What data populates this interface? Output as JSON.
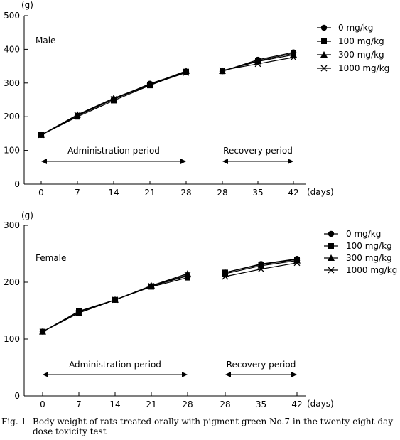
{
  "chart_data": [
    {
      "type": "line",
      "panel_label": "Male",
      "y_unit": "(g)",
      "x_unit": "(days)",
      "ylim": [
        0,
        500
      ],
      "yticks": [
        "0",
        "100",
        "200",
        "300",
        "400",
        "500"
      ],
      "x_tick_labels": [
        "0",
        "7",
        "14",
        "21",
        "28",
        "28",
        "35",
        "42"
      ],
      "segments": [
        {
          "label": "Administration period",
          "x": [
            0,
            7,
            14,
            21,
            28
          ]
        },
        {
          "label": "Recovery period",
          "x": [
            28,
            35,
            42
          ]
        }
      ],
      "series": [
        {
          "name": "0 mg/kg",
          "marker": "circle",
          "administration": [
            146,
            203,
            252,
            298,
            333
          ],
          "recovery": [
            335,
            369,
            391
          ]
        },
        {
          "name": "100 mg/kg",
          "marker": "square",
          "administration": [
            146,
            200,
            248,
            293,
            334
          ],
          "recovery": [
            335,
            366,
            388
          ]
        },
        {
          "name": "300 mg/kg",
          "marker": "triangle",
          "administration": [
            146,
            206,
            255,
            296,
            336
          ],
          "recovery": [
            336,
            364,
            384
          ]
        },
        {
          "name": "1000 mg/kg",
          "marker": "x",
          "administration": [
            146,
            205,
            252,
            295,
            331
          ],
          "recovery": [
            338,
            357,
            376
          ]
        }
      ]
    },
    {
      "type": "line",
      "panel_label": "Female",
      "y_unit": "(g)",
      "x_unit": "(days)",
      "ylim": [
        0,
        300
      ],
      "yticks": [
        "0",
        "100",
        "200",
        "300"
      ],
      "x_tick_labels": [
        "0",
        "7",
        "14",
        "21",
        "28",
        "28",
        "35",
        "42"
      ],
      "segments": [
        {
          "label": "Administration period",
          "x": [
            0,
            7,
            14,
            21,
            28
          ]
        },
        {
          "label": "Recovery period",
          "x": [
            28,
            35,
            42
          ]
        }
      ],
      "series": [
        {
          "name": "0 mg/kg",
          "marker": "circle",
          "administration": [
            113,
            148,
            169,
            193,
            211
          ],
          "recovery": [
            217,
            232,
            241
          ]
        },
        {
          "name": "100 mg/kg",
          "marker": "square",
          "administration": [
            113,
            149,
            169,
            192,
            208
          ],
          "recovery": [
            217,
            231,
            240
          ]
        },
        {
          "name": "300 mg/kg",
          "marker": "triangle",
          "administration": [
            113,
            146,
            169,
            194,
            215
          ],
          "recovery": [
            215,
            229,
            238
          ]
        },
        {
          "name": "1000 mg/kg",
          "marker": "x",
          "administration": [
            113,
            146,
            169,
            193,
            213
          ],
          "recovery": [
            210,
            223,
            234
          ]
        }
      ]
    }
  ],
  "caption": {
    "number": "Fig. 1",
    "line1": "Body weight of rats treated orally with pigment green No.7 in the twenty-eight-day",
    "line2": "dose toxicity test"
  }
}
